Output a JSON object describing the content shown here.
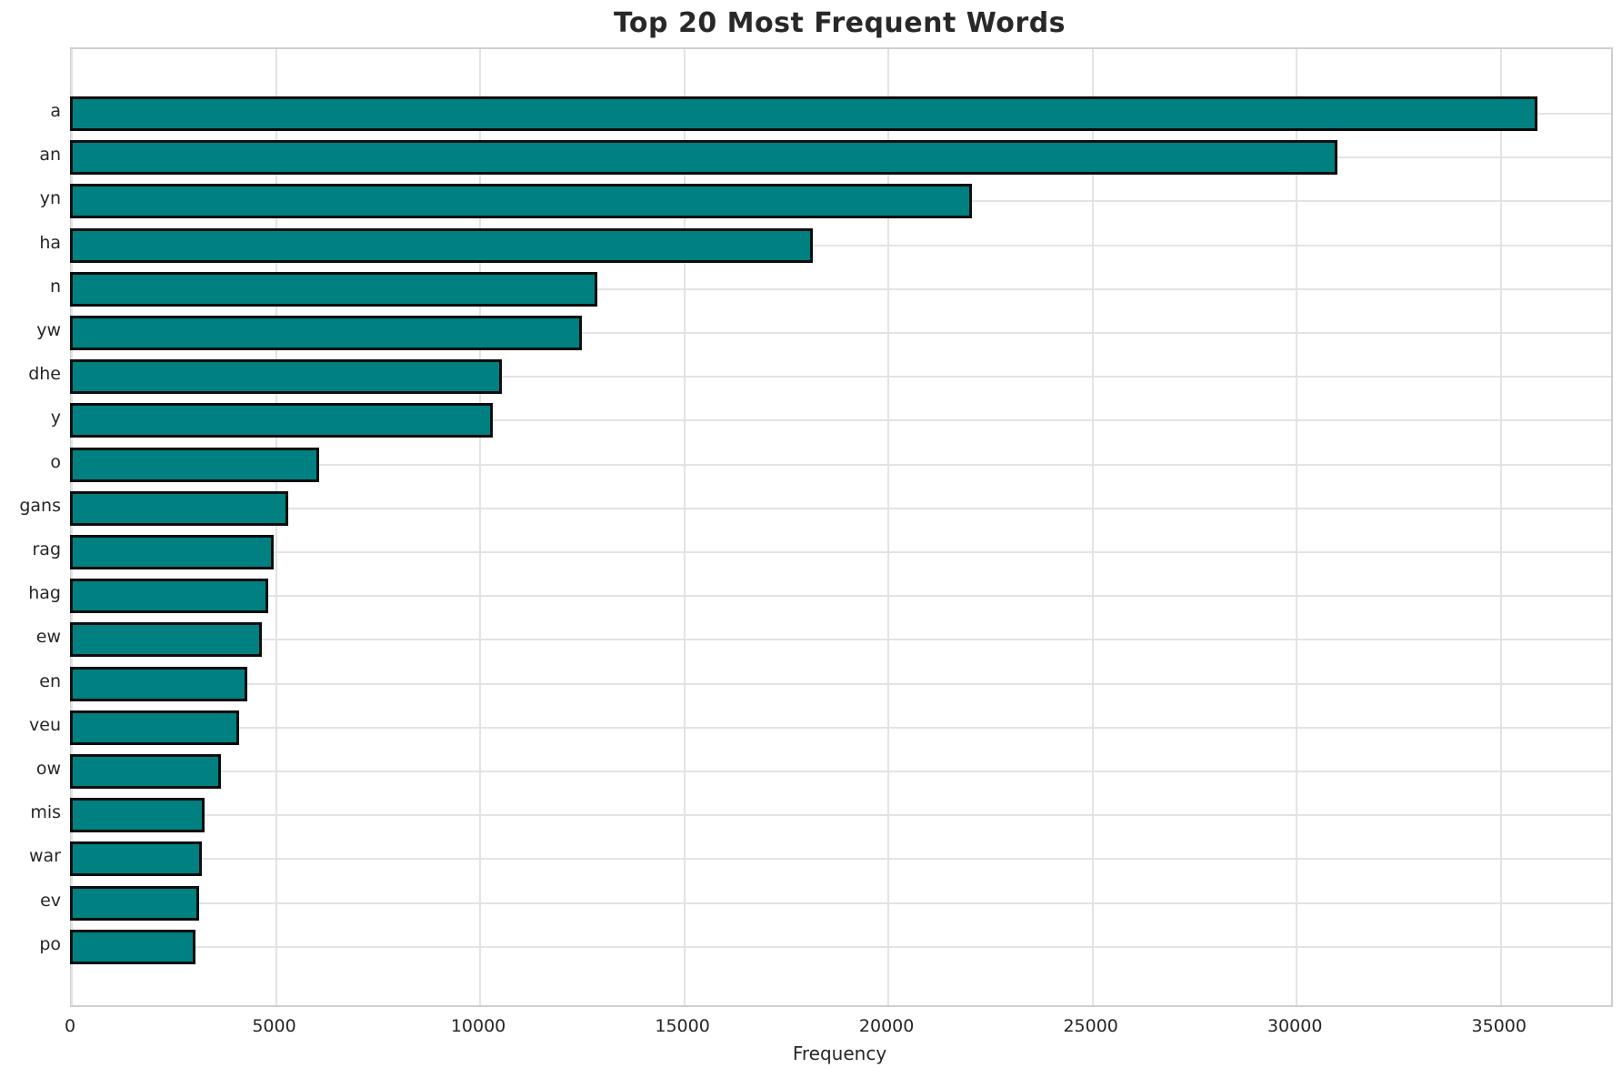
{
  "title": "Top 20 Most Frequent Words",
  "chart_data": {
    "type": "bar",
    "orientation": "horizontal",
    "title": "Top 20 Most Frequent Words",
    "categories": [
      "a",
      "an",
      "yn",
      "ha",
      "n",
      "yw",
      "dhe",
      "y",
      "o",
      "gans",
      "rag",
      "hag",
      "ew",
      "en",
      "veu",
      "ow",
      "mis",
      "war",
      "ev",
      "po"
    ],
    "values": [
      35900,
      31000,
      22050,
      18150,
      12880,
      12500,
      10540,
      10300,
      6050,
      5300,
      4950,
      4800,
      4650,
      4300,
      4100,
      3650,
      3250,
      3180,
      3120,
      3020
    ],
    "xlabel": "Frequency",
    "ylabel": "",
    "xlim": [
      0,
      37700
    ],
    "xticks": [
      0,
      5000,
      10000,
      15000,
      20000,
      25000,
      30000,
      35000
    ],
    "grid": true,
    "legend": "none",
    "bar_color": "#008080",
    "bar_edge_color": "#0d0d0d",
    "grid_color": "#e3e3e3",
    "text_color": "#262626"
  }
}
